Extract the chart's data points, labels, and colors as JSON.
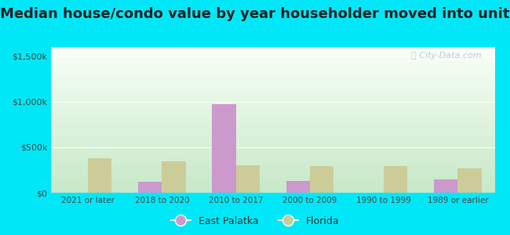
{
  "title": "Median house/condo value by year householder moved into unit",
  "categories": [
    "2021 or later",
    "2018 to 2020",
    "2010 to 2017",
    "2000 to 2009",
    "1990 to 1999",
    "1989 or earlier"
  ],
  "east_palatka": [
    0,
    120000,
    975000,
    130000,
    0,
    150000
  ],
  "florida": [
    375000,
    340000,
    305000,
    295000,
    295000,
    265000
  ],
  "east_palatka_color": "#cc99cc",
  "florida_color": "#cccc99",
  "background_outer": "#00e8f8",
  "title_fontsize": 13,
  "ylabel_ticks": [
    "$0",
    "$500k",
    "$1,000k",
    "$1,500k"
  ],
  "ytick_values": [
    0,
    500000,
    1000000,
    1500000
  ],
  "ylim": [
    0,
    1600000
  ],
  "watermark": "ⓘ City-Data.com",
  "legend_east_palatka": "East Palatka",
  "legend_florida": "Florida"
}
